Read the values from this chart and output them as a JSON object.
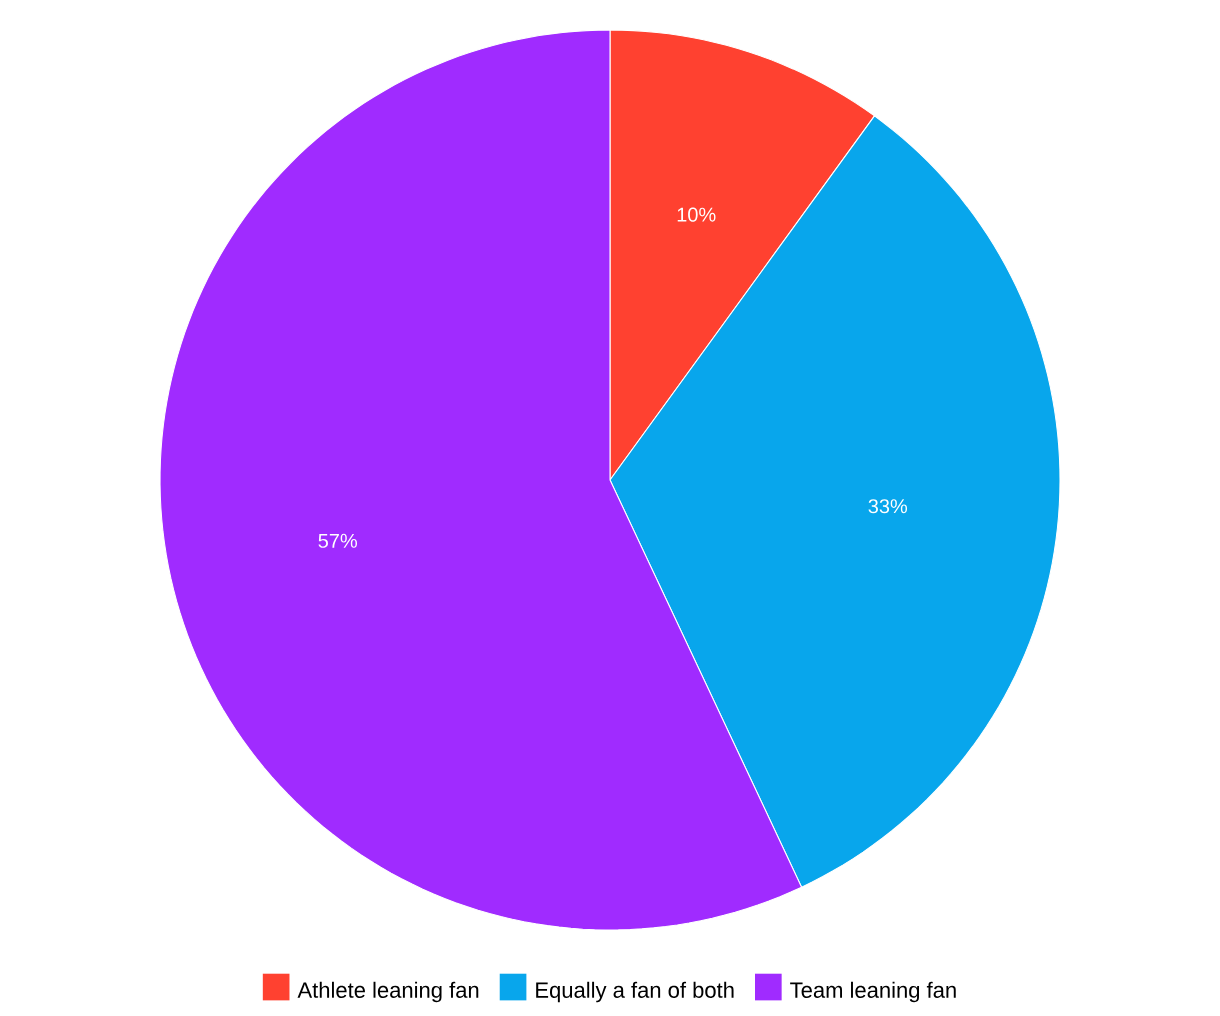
{
  "chart_data": {
    "type": "pie",
    "categories": [
      "Athlete leaning fan",
      "Equally a fan of both",
      "Team leaning fan"
    ],
    "values": [
      10,
      33,
      57
    ],
    "value_labels": [
      "10%",
      "33%",
      "57%"
    ],
    "colors": [
      "#ff4130",
      "#08a6ec",
      "#a02bff"
    ],
    "legend": "bottom"
  }
}
